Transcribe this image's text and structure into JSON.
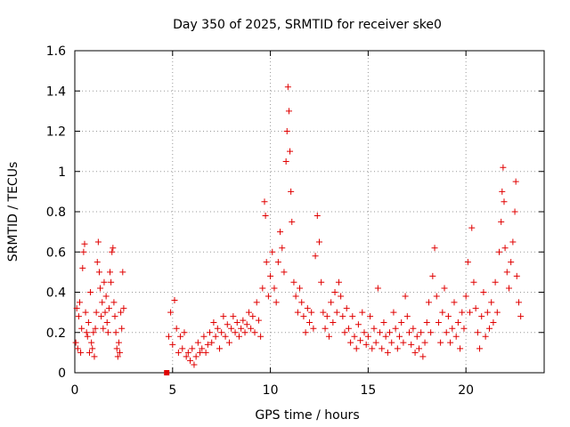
{
  "chart_data": {
    "type": "scatter",
    "title": "Day 350 of 2025, SRMTID for receiver ske0",
    "xlabel": "GPS time / hours",
    "ylabel": "SRMTID / TECUs",
    "xlim": [
      0,
      24
    ],
    "ylim": [
      0,
      1.6
    ],
    "xticks": [
      0,
      5,
      10,
      15,
      20
    ],
    "xtick_labels": [
      "0",
      "5",
      "10",
      "15",
      "20"
    ],
    "yticks": [
      0,
      0.2,
      0.4,
      0.6,
      0.8,
      1.0,
      1.2,
      1.4,
      1.6
    ],
    "ytick_labels": [
      "0",
      "0.2",
      "0.4",
      "0.6",
      "0.8",
      "1",
      "1.2",
      "1.4",
      "1.6"
    ],
    "grid": true,
    "marker": "plus",
    "color": "#e00000",
    "series": [
      {
        "name": "SRMTID",
        "points": [
          [
            0.05,
            0.15
          ],
          [
            0.1,
            0.32
          ],
          [
            0.15,
            0.12
          ],
          [
            0.2,
            0.28
          ],
          [
            0.25,
            0.35
          ],
          [
            0.3,
            0.1
          ],
          [
            0.35,
            0.22
          ],
          [
            0.4,
            0.52
          ],
          [
            0.45,
            0.6
          ],
          [
            0.5,
            0.64
          ],
          [
            0.55,
            0.3
          ],
          [
            0.6,
            0.2
          ],
          [
            0.65,
            0.18
          ],
          [
            0.7,
            0.25
          ],
          [
            0.75,
            0.1
          ],
          [
            0.8,
            0.4
          ],
          [
            0.85,
            0.15
          ],
          [
            0.9,
            0.12
          ],
          [
            0.95,
            0.2
          ],
          [
            1.0,
            0.08
          ],
          [
            1.05,
            0.22
          ],
          [
            1.1,
            0.3
          ],
          [
            1.15,
            0.55
          ],
          [
            1.2,
            0.65
          ],
          [
            1.25,
            0.5
          ],
          [
            1.3,
            0.42
          ],
          [
            1.35,
            0.28
          ],
          [
            1.4,
            0.35
          ],
          [
            1.45,
            0.22
          ],
          [
            1.5,
            0.45
          ],
          [
            1.55,
            0.3
          ],
          [
            1.6,
            0.38
          ],
          [
            1.65,
            0.25
          ],
          [
            1.7,
            0.2
          ],
          [
            1.75,
            0.32
          ],
          [
            1.8,
            0.5
          ],
          [
            1.85,
            0.45
          ],
          [
            1.9,
            0.6
          ],
          [
            1.95,
            0.62
          ],
          [
            2.0,
            0.35
          ],
          [
            2.05,
            0.28
          ],
          [
            2.1,
            0.2
          ],
          [
            2.15,
            0.12
          ],
          [
            2.2,
            0.08
          ],
          [
            2.25,
            0.15
          ],
          [
            2.3,
            0.1
          ],
          [
            2.35,
            0.3
          ],
          [
            2.4,
            0.22
          ],
          [
            2.45,
            0.5
          ],
          [
            2.5,
            0.32
          ],
          [
            4.8,
            0.18
          ],
          [
            4.9,
            0.3
          ],
          [
            5.0,
            0.14
          ],
          [
            5.1,
            0.36
          ],
          [
            5.2,
            0.22
          ],
          [
            5.3,
            0.1
          ],
          [
            5.4,
            0.18
          ],
          [
            5.5,
            0.12
          ],
          [
            5.6,
            0.2
          ],
          [
            5.7,
            0.08
          ],
          [
            5.8,
            0.1
          ],
          [
            5.9,
            0.06
          ],
          [
            6.0,
            0.12
          ],
          [
            6.1,
            0.04
          ],
          [
            6.2,
            0.08
          ],
          [
            6.3,
            0.15
          ],
          [
            6.4,
            0.1
          ],
          [
            6.5,
            0.12
          ],
          [
            6.6,
            0.18
          ],
          [
            6.7,
            0.1
          ],
          [
            6.8,
            0.14
          ],
          [
            6.9,
            0.2
          ],
          [
            7.0,
            0.15
          ],
          [
            7.1,
            0.25
          ],
          [
            7.2,
            0.18
          ],
          [
            7.3,
            0.22
          ],
          [
            7.4,
            0.12
          ],
          [
            7.5,
            0.2
          ],
          [
            7.6,
            0.28
          ],
          [
            7.7,
            0.18
          ],
          [
            7.8,
            0.24
          ],
          [
            7.9,
            0.15
          ],
          [
            8.0,
            0.22
          ],
          [
            8.1,
            0.28
          ],
          [
            8.2,
            0.2
          ],
          [
            8.3,
            0.25
          ],
          [
            8.4,
            0.18
          ],
          [
            8.5,
            0.22
          ],
          [
            8.6,
            0.26
          ],
          [
            8.7,
            0.2
          ],
          [
            8.8,
            0.24
          ],
          [
            8.9,
            0.3
          ],
          [
            9.0,
            0.22
          ],
          [
            9.1,
            0.28
          ],
          [
            9.2,
            0.2
          ],
          [
            9.3,
            0.35
          ],
          [
            9.4,
            0.26
          ],
          [
            9.5,
            0.18
          ],
          [
            9.6,
            0.42
          ],
          [
            9.7,
            0.85
          ],
          [
            9.75,
            0.78
          ],
          [
            9.8,
            0.55
          ],
          [
            9.9,
            0.38
          ],
          [
            10.0,
            0.48
          ],
          [
            10.1,
            0.6
          ],
          [
            10.2,
            0.42
          ],
          [
            10.3,
            0.35
          ],
          [
            10.4,
            0.55
          ],
          [
            10.5,
            0.7
          ],
          [
            10.6,
            0.62
          ],
          [
            10.7,
            0.5
          ],
          [
            10.8,
            1.05
          ],
          [
            10.85,
            1.2
          ],
          [
            10.9,
            1.42
          ],
          [
            10.95,
            1.3
          ],
          [
            11.0,
            1.1
          ],
          [
            11.05,
            0.9
          ],
          [
            11.1,
            0.75
          ],
          [
            11.2,
            0.45
          ],
          [
            11.3,
            0.38
          ],
          [
            11.4,
            0.3
          ],
          [
            11.5,
            0.42
          ],
          [
            11.6,
            0.35
          ],
          [
            11.7,
            0.28
          ],
          [
            11.8,
            0.2
          ],
          [
            11.9,
            0.32
          ],
          [
            12.0,
            0.25
          ],
          [
            12.1,
            0.3
          ],
          [
            12.2,
            0.22
          ],
          [
            12.3,
            0.58
          ],
          [
            12.4,
            0.78
          ],
          [
            12.5,
            0.65
          ],
          [
            12.6,
            0.45
          ],
          [
            12.7,
            0.3
          ],
          [
            12.8,
            0.22
          ],
          [
            12.9,
            0.28
          ],
          [
            13.0,
            0.18
          ],
          [
            13.1,
            0.35
          ],
          [
            13.2,
            0.25
          ],
          [
            13.3,
            0.4
          ],
          [
            13.4,
            0.3
          ],
          [
            13.5,
            0.45
          ],
          [
            13.6,
            0.38
          ],
          [
            13.7,
            0.28
          ],
          [
            13.8,
            0.2
          ],
          [
            13.9,
            0.32
          ],
          [
            14.0,
            0.22
          ],
          [
            14.1,
            0.15
          ],
          [
            14.2,
            0.28
          ],
          [
            14.3,
            0.18
          ],
          [
            14.4,
            0.12
          ],
          [
            14.5,
            0.24
          ],
          [
            14.6,
            0.16
          ],
          [
            14.7,
            0.3
          ],
          [
            14.8,
            0.2
          ],
          [
            14.9,
            0.14
          ],
          [
            15.0,
            0.18
          ],
          [
            15.1,
            0.28
          ],
          [
            15.2,
            0.12
          ],
          [
            15.3,
            0.22
          ],
          [
            15.4,
            0.15
          ],
          [
            15.5,
            0.42
          ],
          [
            15.6,
            0.2
          ],
          [
            15.7,
            0.12
          ],
          [
            15.8,
            0.25
          ],
          [
            15.9,
            0.18
          ],
          [
            16.0,
            0.1
          ],
          [
            16.1,
            0.2
          ],
          [
            16.2,
            0.15
          ],
          [
            16.3,
            0.3
          ],
          [
            16.4,
            0.22
          ],
          [
            16.5,
            0.12
          ],
          [
            16.6,
            0.18
          ],
          [
            16.7,
            0.25
          ],
          [
            16.8,
            0.15
          ],
          [
            16.9,
            0.38
          ],
          [
            17.0,
            0.28
          ],
          [
            17.1,
            0.2
          ],
          [
            17.2,
            0.14
          ],
          [
            17.3,
            0.22
          ],
          [
            17.4,
            0.1
          ],
          [
            17.5,
            0.18
          ],
          [
            17.6,
            0.12
          ],
          [
            17.7,
            0.2
          ],
          [
            17.8,
            0.08
          ],
          [
            17.9,
            0.15
          ],
          [
            18.0,
            0.25
          ],
          [
            18.1,
            0.35
          ],
          [
            18.2,
            0.2
          ],
          [
            18.3,
            0.48
          ],
          [
            18.4,
            0.62
          ],
          [
            18.5,
            0.38
          ],
          [
            18.6,
            0.25
          ],
          [
            18.7,
            0.15
          ],
          [
            18.8,
            0.3
          ],
          [
            18.9,
            0.42
          ],
          [
            19.0,
            0.2
          ],
          [
            19.1,
            0.28
          ],
          [
            19.2,
            0.15
          ],
          [
            19.3,
            0.22
          ],
          [
            19.4,
            0.35
          ],
          [
            19.5,
            0.18
          ],
          [
            19.6,
            0.25
          ],
          [
            19.7,
            0.12
          ],
          [
            19.8,
            0.3
          ],
          [
            19.9,
            0.22
          ],
          [
            20.0,
            0.38
          ],
          [
            20.1,
            0.55
          ],
          [
            20.2,
            0.3
          ],
          [
            20.3,
            0.72
          ],
          [
            20.4,
            0.45
          ],
          [
            20.5,
            0.32
          ],
          [
            20.6,
            0.2
          ],
          [
            20.7,
            0.12
          ],
          [
            20.8,
            0.28
          ],
          [
            20.9,
            0.4
          ],
          [
            21.0,
            0.18
          ],
          [
            21.1,
            0.3
          ],
          [
            21.2,
            0.22
          ],
          [
            21.3,
            0.35
          ],
          [
            21.4,
            0.25
          ],
          [
            21.5,
            0.45
          ],
          [
            21.6,
            0.3
          ],
          [
            21.7,
            0.6
          ],
          [
            21.8,
            0.75
          ],
          [
            21.85,
            0.9
          ],
          [
            21.9,
            1.02
          ],
          [
            21.95,
            0.85
          ],
          [
            22.0,
            0.62
          ],
          [
            22.1,
            0.5
          ],
          [
            22.2,
            0.42
          ],
          [
            22.3,
            0.55
          ],
          [
            22.4,
            0.65
          ],
          [
            22.5,
            0.8
          ],
          [
            22.55,
            0.95
          ],
          [
            22.6,
            0.48
          ],
          [
            22.7,
            0.35
          ],
          [
            22.8,
            0.28
          ]
        ]
      }
    ],
    "marker_square": {
      "x": 4.7,
      "y": 0.0
    }
  }
}
